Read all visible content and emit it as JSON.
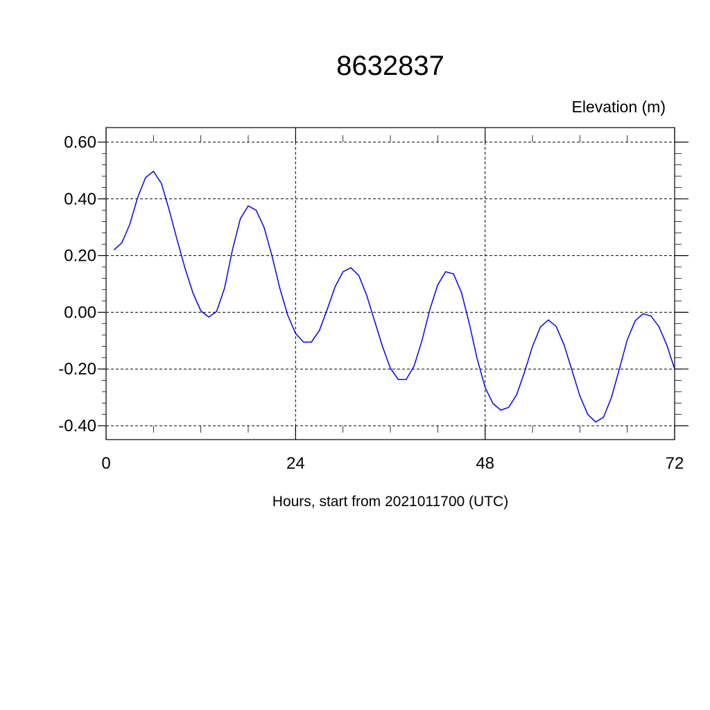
{
  "chart_data": {
    "type": "line",
    "title": "8632837",
    "unit_label": "Elevation (m)",
    "xlabel": "Hours, start from 2021011700 (UTC)",
    "xlim": [
      0,
      72
    ],
    "ylim": [
      -0.4,
      0.6
    ],
    "x_ticks": [
      0,
      24,
      48,
      72
    ],
    "x_tick_labels": [
      "0",
      "24",
      "48",
      "72"
    ],
    "y_ticks": [
      -0.4,
      -0.2,
      0.0,
      0.2,
      0.4,
      0.6
    ],
    "y_tick_labels": [
      "-0.40",
      "-0.20",
      "0.00",
      "0.20",
      "0.40",
      "0.60"
    ],
    "grid": true,
    "series": [
      {
        "color": "#0000ff",
        "x": [
          1,
          2,
          3,
          4,
          5,
          6,
          7,
          8,
          9,
          10,
          11,
          12,
          13,
          14,
          15,
          16,
          17,
          18,
          19,
          20,
          21,
          22,
          23,
          24,
          25,
          26,
          27,
          28,
          29,
          30,
          31,
          32,
          33,
          34,
          35,
          36,
          37,
          38,
          39,
          40,
          41,
          42,
          43,
          44,
          45,
          46,
          47,
          48,
          49,
          50,
          51,
          52,
          53,
          54,
          55,
          56,
          57,
          58,
          59,
          60,
          61,
          62,
          63,
          64,
          65,
          66,
          67,
          68,
          69,
          70,
          71,
          72
        ],
        "y": [
          0.22,
          0.245,
          0.31,
          0.405,
          0.475,
          0.497,
          0.455,
          0.36,
          0.255,
          0.155,
          0.068,
          0.005,
          -0.017,
          0.003,
          0.085,
          0.22,
          0.33,
          0.375,
          0.36,
          0.3,
          0.2,
          0.085,
          -0.01,
          -0.075,
          -0.105,
          -0.105,
          -0.065,
          0.01,
          0.09,
          0.143,
          0.157,
          0.13,
          0.06,
          -0.03,
          -0.12,
          -0.197,
          -0.237,
          -0.237,
          -0.19,
          -0.1,
          0.01,
          0.097,
          0.143,
          0.135,
          0.07,
          -0.04,
          -0.165,
          -0.265,
          -0.322,
          -0.345,
          -0.335,
          -0.29,
          -0.21,
          -0.12,
          -0.052,
          -0.027,
          -0.05,
          -0.115,
          -0.205,
          -0.295,
          -0.36,
          -0.387,
          -0.37,
          -0.3,
          -0.2,
          -0.097,
          -0.03,
          -0.005,
          -0.013,
          -0.05,
          -0.115,
          -0.2
        ]
      }
    ]
  }
}
